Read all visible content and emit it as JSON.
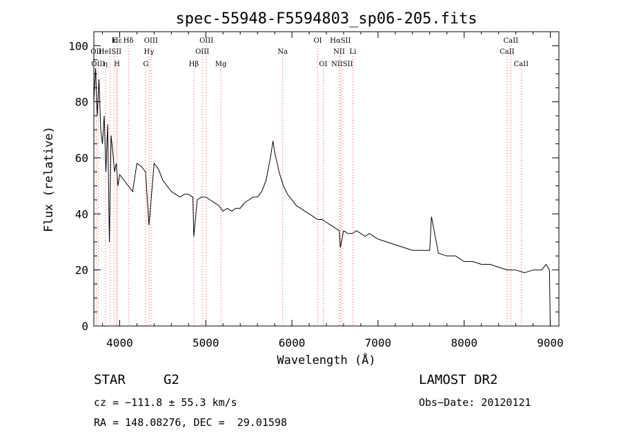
{
  "chart_data": {
    "type": "line",
    "title": "spec-55948-F5594803_sp06-205.fits",
    "xlabel": "Wavelength (Å)",
    "ylabel": "Flux (relative)",
    "xlim": [
      3700,
      9100
    ],
    "ylim": [
      0,
      105
    ],
    "xticks": [
      4000,
      5000,
      6000,
      7000,
      8000,
      9000
    ],
    "yticks": [
      0,
      20,
      40,
      60,
      80,
      100
    ],
    "grid": false,
    "legend": "none",
    "line_color": "#000000",
    "marker_color": "#e02020",
    "series": [
      {
        "x": [
          3700,
          3720,
          3740,
          3760,
          3780,
          3800,
          3820,
          3840,
          3860,
          3880,
          3900,
          3920,
          3940,
          3960,
          3980,
          4000,
          4050,
          4100,
          4150,
          4200,
          4250,
          4300,
          4340,
          4400,
          4450,
          4500,
          4550,
          4600,
          4650,
          4700,
          4750,
          4800,
          4850,
          4861,
          4900,
          4950,
          5000,
          5050,
          5100,
          5150,
          5200,
          5250,
          5300,
          5350,
          5400,
          5450,
          5500,
          5550,
          5600,
          5650,
          5700,
          5750,
          5780,
          5800,
          5850,
          5900,
          5950,
          6000,
          6050,
          6100,
          6150,
          6200,
          6250,
          6300,
          6350,
          6400,
          6450,
          6500,
          6550,
          6563,
          6600,
          6650,
          6700,
          6750,
          6800,
          6850,
          6900,
          6950,
          7000,
          7100,
          7200,
          7300,
          7400,
          7500,
          7600,
          7620,
          7700,
          7800,
          7900,
          8000,
          8100,
          8200,
          8300,
          8400,
          8500,
          8600,
          8700,
          8800,
          8900,
          8950,
          8990,
          9000
        ],
        "y": [
          80,
          92,
          75,
          88,
          70,
          65,
          75,
          55,
          72,
          30,
          68,
          62,
          55,
          58,
          50,
          54,
          52,
          50,
          48,
          58,
          57,
          55,
          36,
          58,
          56,
          52,
          50,
          48,
          47,
          46,
          47,
          47,
          46,
          32,
          45,
          46,
          46,
          45,
          44,
          43,
          41,
          42,
          41,
          42,
          42,
          44,
          45,
          46,
          46,
          48,
          52,
          60,
          66,
          62,
          55,
          50,
          47,
          45,
          43,
          42,
          41,
          40,
          39,
          38,
          38,
          37,
          36,
          35,
          34,
          28,
          34,
          33,
          33,
          34,
          33,
          32,
          33,
          32,
          31,
          30,
          29,
          28,
          27,
          27,
          27,
          39,
          26,
          25,
          25,
          23,
          23,
          22,
          22,
          21,
          20,
          20,
          19,
          20,
          20,
          22,
          20,
          0
        ]
      }
    ],
    "line_markers": [
      {
        "label": "Hε",
        "x": 3970,
        "row": 1
      },
      {
        "label": "K",
        "x": 3934,
        "row": 1
      },
      {
        "label": "Hδ",
        "x": 4102,
        "row": 1
      },
      {
        "label": "OIII",
        "x": 4363,
        "row": 1
      },
      {
        "label": "OIII",
        "x": 5007,
        "row": 1
      },
      {
        "label": "OI",
        "x": 6300,
        "row": 1
      },
      {
        "label": "HαSII",
        "x": 6563,
        "row": 1
      },
      {
        "label": "CaII",
        "x": 8542,
        "row": 1
      },
      {
        "label": "OII",
        "x": 3727,
        "row": 2
      },
      {
        "label": "HeISII",
        "x": 3888,
        "row": 2
      },
      {
        "label": "Hγ",
        "x": 4340,
        "row": 2
      },
      {
        "label": "OIII",
        "x": 4959,
        "row": 2
      },
      {
        "label": "Na",
        "x": 5893,
        "row": 2
      },
      {
        "label": "NII",
        "x": 6548,
        "row": 2
      },
      {
        "label": "Li",
        "x": 6708,
        "row": 2
      },
      {
        "label": "CaII",
        "x": 8498,
        "row": 2
      },
      {
        "label": "OIII",
        "x": 3750,
        "row": 3
      },
      {
        "label": "η",
        "x": 3835,
        "row": 3
      },
      {
        "label": "H",
        "x": 3968,
        "row": 3
      },
      {
        "label": "G",
        "x": 4304,
        "row": 3
      },
      {
        "label": "Hβ",
        "x": 4861,
        "row": 3
      },
      {
        "label": "Mg",
        "x": 5175,
        "row": 3
      },
      {
        "label": "OI",
        "x": 6364,
        "row": 3
      },
      {
        "label": "NIISII",
        "x": 6583,
        "row": 3
      },
      {
        "label": "CaII",
        "x": 8662,
        "row": 3
      }
    ]
  },
  "info": {
    "object_class": "STAR",
    "subclass": "G2",
    "survey": "LAMOST DR2",
    "cz": "cz = −111.8 ± 55.3 km/s",
    "obs_date": "Obs−Date: 20120121",
    "coords": "RA = 148.08276, DEC =  29.01598"
  }
}
